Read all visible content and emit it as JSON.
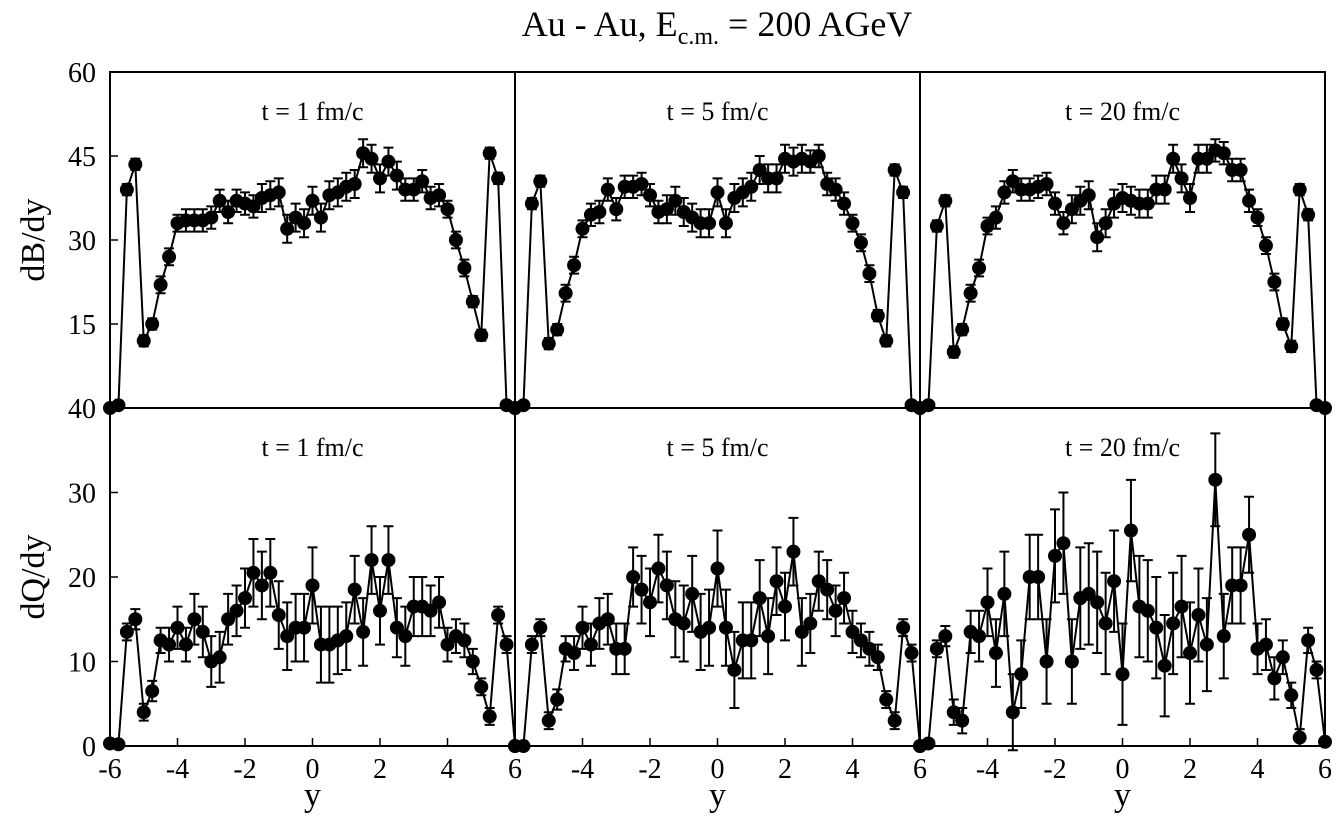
{
  "title": "Au - Au, E",
  "title_subscript": "c.m.",
  "title_suffix": " = 200 AGeV",
  "chart_data": [
    {
      "type": "line",
      "annotation": "t = 1 fm/c",
      "ylabel": "dB/dy",
      "color": "#000000",
      "x": [
        -6,
        -5.75,
        -5.5,
        -5.25,
        -5,
        -4.75,
        -4.5,
        -4.25,
        -4,
        -3.75,
        -3.5,
        -3.25,
        -3,
        -2.75,
        -2.5,
        -2.25,
        -2,
        -1.75,
        -1.5,
        -1.25,
        -1,
        -0.75,
        -0.5,
        -0.25,
        0,
        0.25,
        0.5,
        0.75,
        1,
        1.25,
        1.5,
        1.75,
        2,
        2.25,
        2.5,
        2.75,
        3,
        3.25,
        3.5,
        3.75,
        4,
        4.25,
        4.5,
        4.75,
        5,
        5.25,
        5.5,
        5.75,
        6
      ],
      "values": [
        0,
        0.5,
        39,
        43.5,
        12,
        15,
        22,
        27,
        33,
        33.5,
        33.5,
        33.5,
        34,
        37,
        35,
        37,
        36.5,
        36,
        37.5,
        38,
        38.5,
        32,
        34,
        33,
        37,
        34,
        38,
        38.5,
        39.5,
        40,
        45.5,
        44.5,
        41,
        44,
        41.5,
        39,
        39,
        40.5,
        37.5,
        38,
        35.5,
        30,
        25,
        19,
        13,
        45.5,
        41,
        0.5,
        0
      ],
      "errors": [
        0.3,
        0.3,
        1,
        1,
        1,
        1,
        1.5,
        1.5,
        1.5,
        2,
        2,
        2,
        2,
        2,
        2,
        2,
        2,
        2,
        2.5,
        2.5,
        2.5,
        2.5,
        2.5,
        2.5,
        2.5,
        2.5,
        2.5,
        2.5,
        2.5,
        2.5,
        2.5,
        2.5,
        2.5,
        2.5,
        2.5,
        2,
        2,
        2,
        2,
        2,
        1.5,
        1.5,
        1.5,
        1,
        1,
        1,
        1,
        0.3,
        0.3
      ],
      "xlim": [
        -6,
        6
      ],
      "ylim": [
        0,
        60
      ],
      "yticks": [
        15,
        30,
        45,
        60
      ]
    },
    {
      "type": "line",
      "annotation": "t = 5 fm/c",
      "color": "#000000",
      "x": [
        -6,
        -5.75,
        -5.5,
        -5.25,
        -5,
        -4.75,
        -4.5,
        -4.25,
        -4,
        -3.75,
        -3.5,
        -3.25,
        -3,
        -2.75,
        -2.5,
        -2.25,
        -2,
        -1.75,
        -1.5,
        -1.25,
        -1,
        -0.75,
        -0.5,
        -0.25,
        0,
        0.25,
        0.5,
        0.75,
        1,
        1.25,
        1.5,
        1.75,
        2,
        2.25,
        2.5,
        2.75,
        3,
        3.25,
        3.5,
        3.75,
        4,
        4.25,
        4.5,
        4.75,
        5,
        5.25,
        5.5,
        5.75,
        6
      ],
      "values": [
        0,
        0.5,
        36.5,
        40.5,
        11.5,
        14,
        20.5,
        25.5,
        32,
        34.5,
        35,
        39,
        35.5,
        39.5,
        39.5,
        40,
        38,
        35,
        35.5,
        37,
        35,
        34,
        33,
        33,
        38.5,
        33,
        37.5,
        38.5,
        39.5,
        42.5,
        41,
        41,
        44.5,
        44,
        44.5,
        44,
        45,
        40,
        39,
        36.5,
        33,
        29.5,
        24,
        16.5,
        12,
        42.5,
        38.5,
        0.5,
        0
      ],
      "errors": [
        0.3,
        0.3,
        1,
        1,
        1,
        1,
        1.5,
        1.5,
        1.5,
        2,
        2,
        2,
        2,
        2,
        2,
        2,
        2,
        2,
        2.5,
        2.5,
        2.5,
        2.5,
        2.5,
        2.5,
        2.5,
        2.5,
        2.5,
        2.5,
        2.5,
        2.5,
        2.5,
        2.5,
        2.5,
        2.5,
        2.5,
        2,
        2,
        2,
        2,
        2,
        1.5,
        1.5,
        1.5,
        1,
        1,
        1,
        1,
        0.3,
        0.3
      ],
      "xlim": [
        -6,
        6
      ],
      "ylim": [
        0,
        60
      ]
    },
    {
      "type": "line",
      "annotation": "t = 20 fm/c",
      "color": "#000000",
      "x": [
        -6,
        -5.75,
        -5.5,
        -5.25,
        -5,
        -4.75,
        -4.5,
        -4.25,
        -4,
        -3.75,
        -3.5,
        -3.25,
        -3,
        -2.75,
        -2.5,
        -2.25,
        -2,
        -1.75,
        -1.5,
        -1.25,
        -1,
        -0.75,
        -0.5,
        -0.25,
        0,
        0.25,
        0.5,
        0.75,
        1,
        1.25,
        1.5,
        1.75,
        2,
        2.25,
        2.5,
        2.75,
        3,
        3.25,
        3.5,
        3.75,
        4,
        4.25,
        4.5,
        4.75,
        5,
        5.25,
        5.5,
        5.75,
        6
      ],
      "values": [
        0,
        0.5,
        32.5,
        37,
        10,
        14,
        20.5,
        25,
        32.5,
        34,
        38.5,
        40.5,
        39,
        39,
        39.5,
        40,
        36.5,
        33,
        35.5,
        37,
        38,
        30.5,
        33,
        36.5,
        37.5,
        37,
        36.5,
        36.5,
        39,
        39,
        44.5,
        41,
        37.5,
        44.5,
        44.5,
        46,
        45.5,
        42.5,
        42.5,
        37,
        34,
        29,
        22.5,
        15,
        11,
        39,
        34.5,
        0.5,
        0
      ],
      "errors": [
        0.3,
        0.3,
        1,
        1,
        1,
        1,
        1.5,
        1.5,
        1.5,
        2,
        2,
        2,
        2,
        2,
        2,
        2,
        2,
        2,
        2.5,
        2.5,
        2.5,
        2.5,
        2.5,
        2.5,
        2.5,
        2.5,
        2.5,
        2.5,
        2.5,
        2.5,
        2.5,
        2.5,
        2.5,
        2.5,
        2.5,
        2,
        2,
        2,
        2,
        2,
        1.5,
        1.5,
        1.5,
        1,
        1,
        1,
        1,
        0.3,
        0.3
      ],
      "xlim": [
        -6,
        6
      ],
      "ylim": [
        0,
        60
      ]
    },
    {
      "type": "line",
      "annotation": "t = 1 fm/c",
      "ylabel": "dQ/dy",
      "xlabel": "y",
      "color": "#000000",
      "x": [
        -6,
        -5.75,
        -5.5,
        -5.25,
        -5,
        -4.75,
        -4.5,
        -4.25,
        -4,
        -3.75,
        -3.5,
        -3.25,
        -3,
        -2.75,
        -2.5,
        -2.25,
        -2,
        -1.75,
        -1.5,
        -1.25,
        -1,
        -0.75,
        -0.5,
        -0.25,
        0,
        0.25,
        0.5,
        0.75,
        1,
        1.25,
        1.5,
        1.75,
        2,
        2.25,
        2.5,
        2.75,
        3,
        3.25,
        3.5,
        3.75,
        4,
        4.25,
        4.5,
        4.75,
        5,
        5.25,
        5.5,
        5.75,
        6
      ],
      "values": [
        0.3,
        0.2,
        13.5,
        15,
        4,
        6.5,
        12.5,
        12,
        14,
        12,
        15,
        13.5,
        10,
        10.5,
        15,
        16,
        17.5,
        20.5,
        19,
        20.5,
        15.5,
        13,
        14,
        14,
        19,
        12,
        12,
        12.5,
        13,
        18.5,
        13.5,
        22,
        16,
        22,
        14,
        13,
        16.5,
        16.5,
        16,
        17,
        12,
        13,
        12.5,
        10,
        7,
        3.5,
        15.5,
        12,
        0
      ],
      "errors": [
        0.2,
        0.2,
        1,
        1.2,
        1,
        1.2,
        1.5,
        2,
        2.5,
        2,
        3,
        3,
        3,
        3,
        3,
        3,
        3.5,
        4,
        4,
        4,
        4,
        4,
        4,
        4,
        4.5,
        4.5,
        4.5,
        4,
        4,
        4,
        4,
        4,
        4,
        4,
        3.5,
        3.5,
        3.5,
        3.5,
        3,
        3,
        2,
        2,
        2,
        1.5,
        1,
        1,
        1,
        1,
        0.2
      ],
      "xlim": [
        -6,
        6
      ],
      "xticks": [
        -6,
        -4,
        -2,
        0,
        2,
        4,
        6
      ],
      "ylim": [
        0,
        40
      ],
      "yticks": [
        0,
        10,
        20,
        30,
        40
      ]
    },
    {
      "type": "line",
      "annotation": "t = 5 fm/c",
      "xlabel": "y",
      "color": "#000000",
      "x": [
        -6,
        -5.75,
        -5.5,
        -5.25,
        -5,
        -4.75,
        -4.5,
        -4.25,
        -4,
        -3.75,
        -3.5,
        -3.25,
        -3,
        -2.75,
        -2.5,
        -2.25,
        -2,
        -1.75,
        -1.5,
        -1.25,
        -1,
        -0.75,
        -0.5,
        -0.25,
        0,
        0.25,
        0.5,
        0.75,
        1,
        1.25,
        1.5,
        1.75,
        2,
        2.25,
        2.5,
        2.75,
        3,
        3.25,
        3.5,
        3.75,
        4,
        4.25,
        4.5,
        4.75,
        5,
        5.25,
        5.5,
        5.75,
        6
      ],
      "values": [
        0,
        0,
        12,
        14,
        3,
        5.5,
        11.5,
        11,
        14,
        12,
        14.5,
        15,
        11.5,
        11.5,
        20,
        18.5,
        17,
        21,
        19,
        15,
        14.5,
        18,
        13.5,
        14,
        21,
        14,
        9,
        12.5,
        12.5,
        17.5,
        13,
        19.5,
        16.5,
        23,
        13.5,
        14.5,
        19.5,
        18.5,
        16,
        17.5,
        13.5,
        12.5,
        11.5,
        10.5,
        5.5,
        3,
        14,
        11,
        0
      ],
      "errors": [
        0.2,
        0.2,
        1,
        1,
        1,
        1.2,
        1.5,
        2,
        2.5,
        2.5,
        3,
        3,
        3,
        3,
        3.5,
        4,
        4,
        4,
        4,
        4.5,
        4.5,
        4.5,
        4.5,
        4.5,
        4.5,
        4.5,
        4.5,
        4.5,
        4.5,
        4.5,
        4.5,
        4,
        4,
        4,
        4,
        3.5,
        3.5,
        3.5,
        3,
        3,
        2.5,
        2,
        2,
        1.5,
        1,
        1,
        1,
        1,
        0.2
      ],
      "xlim": [
        -6,
        6
      ],
      "xticks": [
        -4,
        -2,
        0,
        2,
        4,
        6
      ],
      "ylim": [
        0,
        40
      ]
    },
    {
      "type": "line",
      "annotation": "t = 20 fm/c",
      "xlabel": "y",
      "color": "#000000",
      "x": [
        -6,
        -5.75,
        -5.5,
        -5.25,
        -5,
        -4.75,
        -4.5,
        -4.25,
        -4,
        -3.75,
        -3.5,
        -3.25,
        -3,
        -2.75,
        -2.5,
        -2.25,
        -2,
        -1.75,
        -1.5,
        -1.25,
        -1,
        -0.75,
        -0.5,
        -0.25,
        0,
        0.25,
        0.5,
        0.75,
        1,
        1.25,
        1.5,
        1.75,
        2,
        2.25,
        2.5,
        2.75,
        3,
        3.25,
        3.5,
        3.75,
        4,
        4.25,
        4.5,
        4.75,
        5,
        5.25,
        5.5,
        5.75,
        6
      ],
      "values": [
        0,
        0.3,
        11.5,
        13,
        4,
        3,
        13.5,
        13,
        17,
        11,
        18,
        4,
        8.5,
        20,
        20,
        10,
        22.5,
        24,
        10,
        17.5,
        18,
        17,
        14.5,
        19.5,
        8.5,
        25.5,
        16.5,
        16,
        14,
        9.5,
        14.5,
        16.5,
        11,
        15.5,
        12,
        31.5,
        13,
        19,
        19,
        25,
        11.5,
        12,
        8,
        10.5,
        6,
        1,
        12.5,
        9,
        0.5
      ],
      "errors": [
        0.2,
        0.3,
        1,
        1.2,
        1.5,
        1.5,
        2.5,
        3,
        4,
        4,
        5,
        4.5,
        4,
        5,
        5,
        5,
        5.5,
        6,
        5,
        6,
        6,
        6,
        6,
        6,
        6,
        6,
        6,
        6,
        6,
        6,
        6,
        6,
        6,
        5.5,
        5.5,
        5.5,
        5,
        4.5,
        4.5,
        4.5,
        3,
        3,
        2.5,
        2,
        1.5,
        1,
        1.5,
        1,
        0.2
      ],
      "xlim": [
        -6,
        6
      ],
      "xticks": [
        -4,
        -2,
        0,
        2,
        4,
        6
      ],
      "ylim": [
        0,
        40
      ]
    }
  ]
}
